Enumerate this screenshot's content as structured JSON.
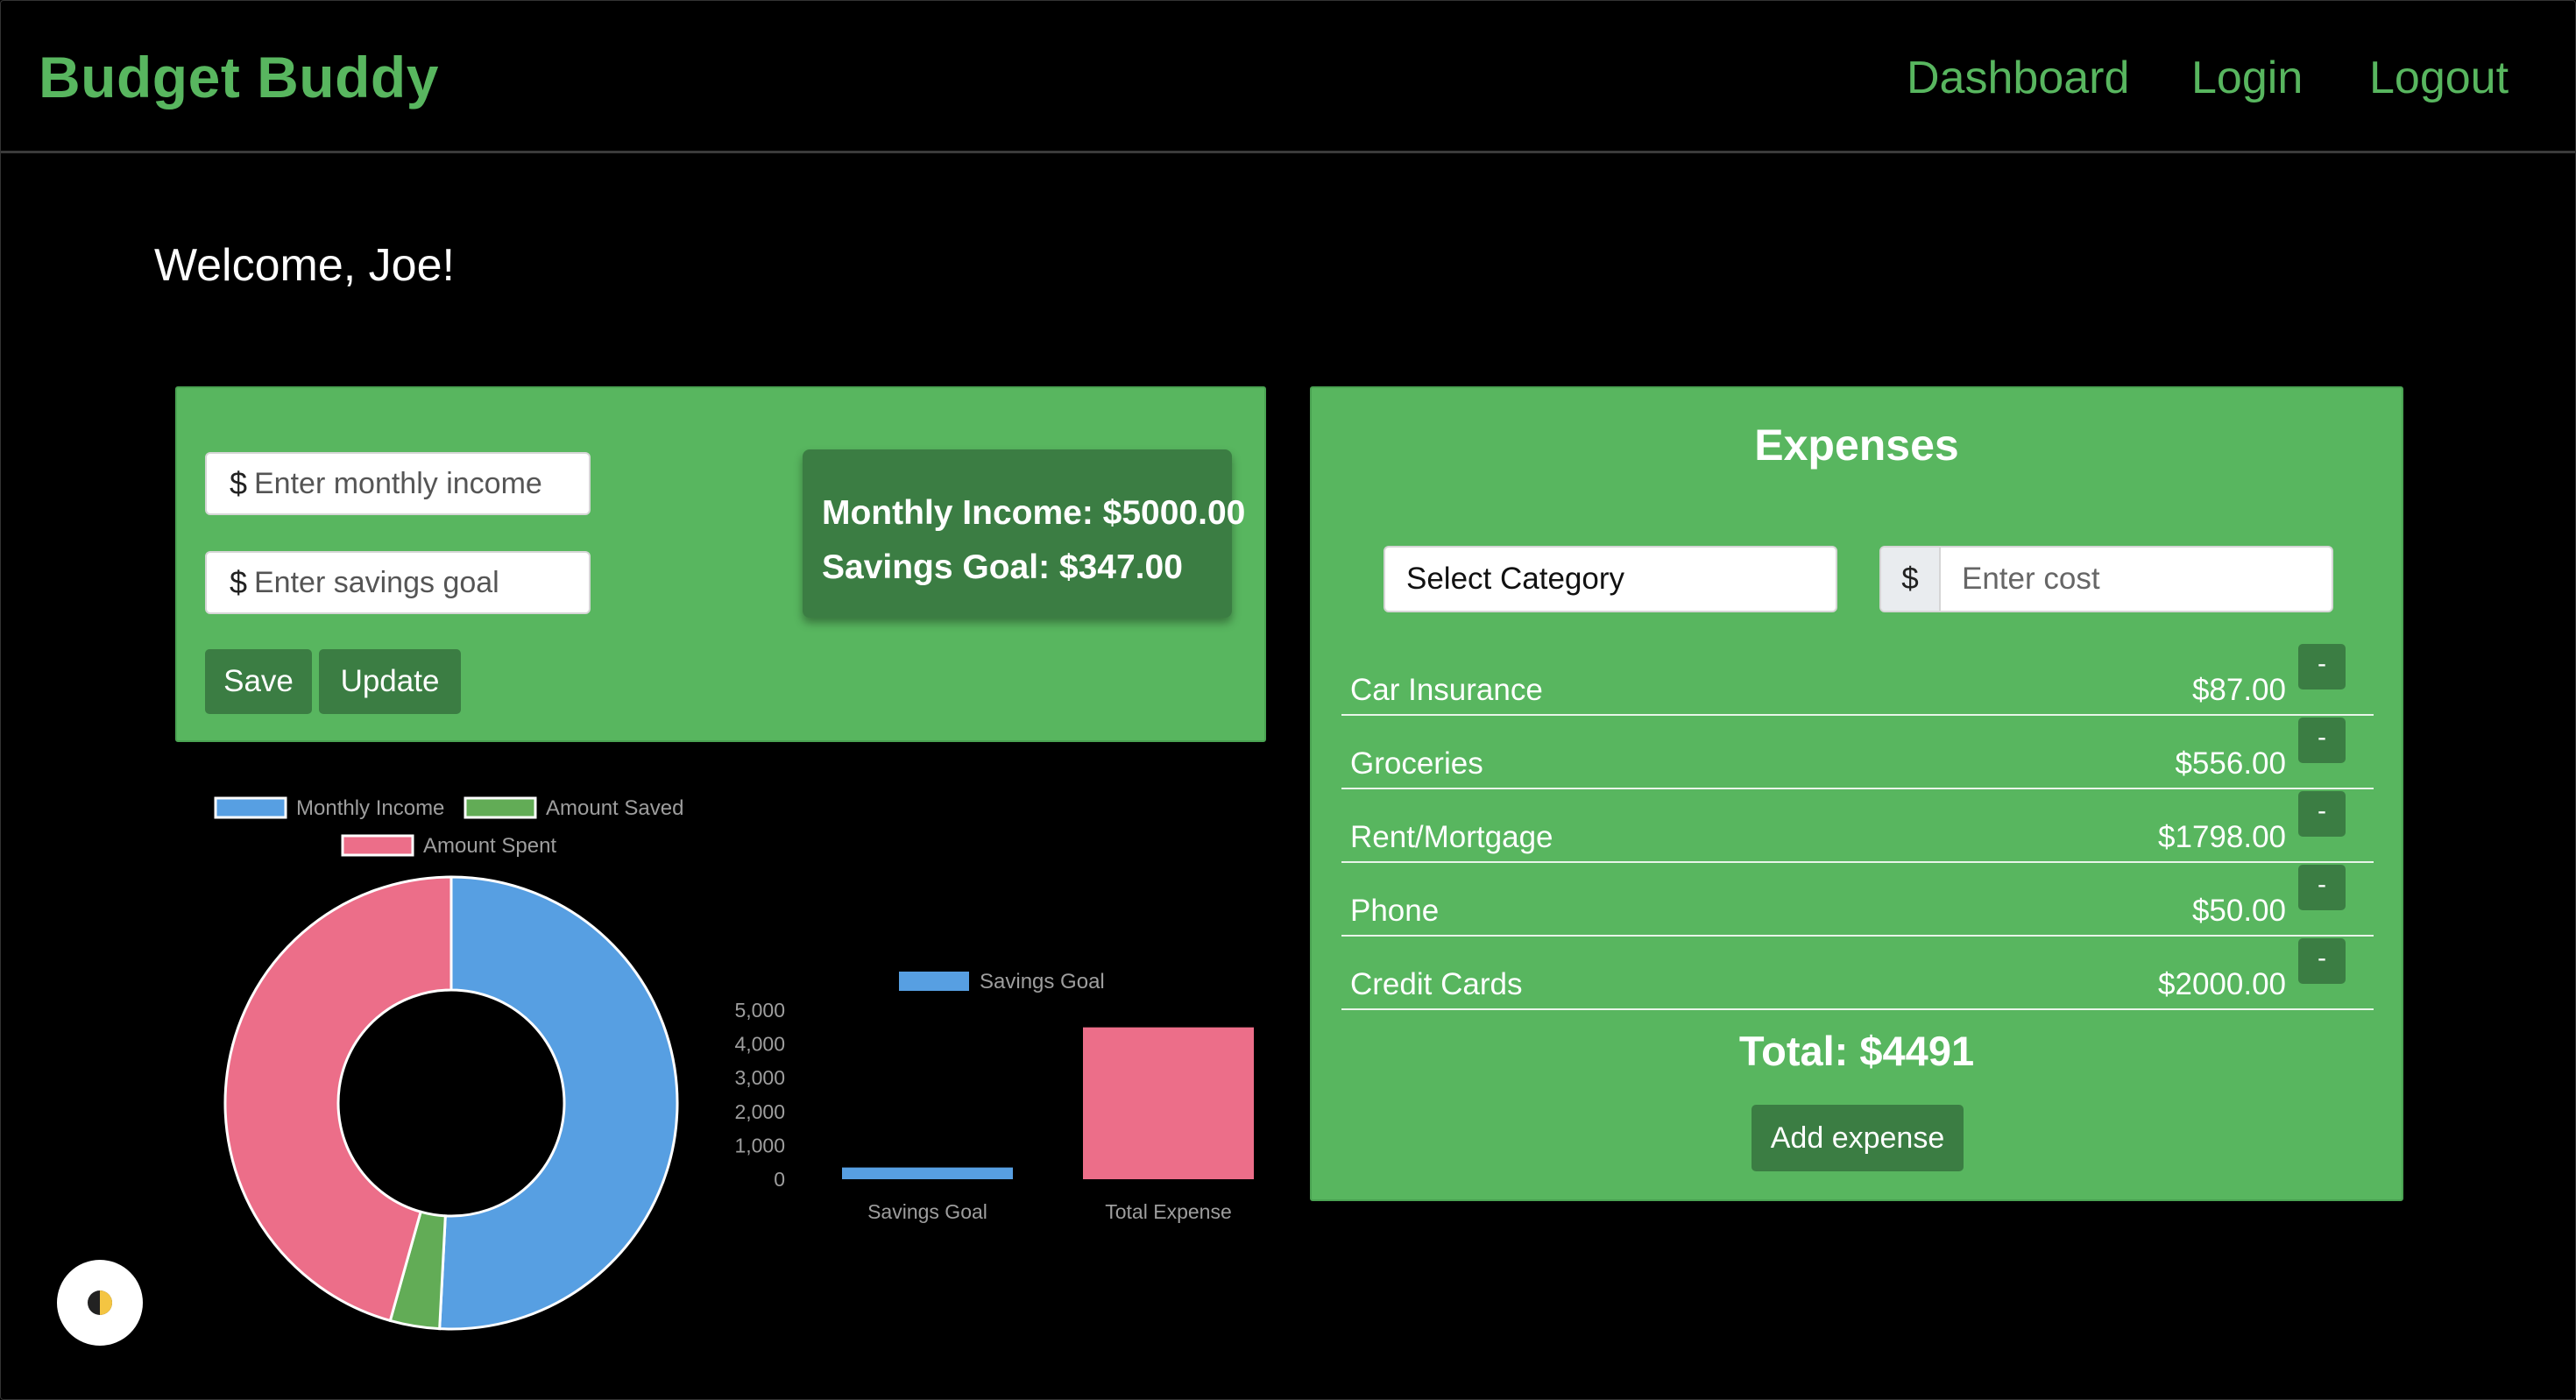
{
  "navbar": {
    "brand": "Budget Buddy",
    "links": [
      "Dashboard",
      "Login",
      "Logout"
    ]
  },
  "welcome": "Welcome, Joe!",
  "income_form": {
    "currency_symbol": "$",
    "income_placeholder": "Enter monthly income",
    "savings_placeholder": "Enter savings goal",
    "save_label": "Save",
    "update_label": "Update"
  },
  "summary": {
    "monthly_income": "Monthly Income: $5000.00",
    "savings_goal": "Savings Goal: $347.00"
  },
  "expenses": {
    "title": "Expenses",
    "category_placeholder": "Select Category",
    "currency_symbol": "$",
    "cost_placeholder": "Enter cost",
    "items": [
      {
        "name": "Car Insurance",
        "amount": "$87.00",
        "remove_label": "-"
      },
      {
        "name": "Groceries",
        "amount": "$556.00",
        "remove_label": "-"
      },
      {
        "name": "Rent/Mortgage",
        "amount": "$1798.00",
        "remove_label": "-"
      },
      {
        "name": "Phone",
        "amount": "$50.00",
        "remove_label": "-"
      },
      {
        "name": "Credit Cards",
        "amount": "$2000.00",
        "remove_label": "-"
      }
    ],
    "total": "Total: $4491",
    "add_label": "Add expense"
  },
  "theme_toggle_icon": "half-moon-icon",
  "colors": {
    "background": "#000000",
    "brand_green": "#58b65f",
    "card_green": "#58b65f",
    "button_green": "#3b7d43",
    "chart_blue": "#579fe2",
    "chart_green": "#62ac56",
    "chart_pink": "#ec6e89"
  },
  "chart_data": [
    {
      "type": "pie",
      "variant": "doughnut",
      "legend_position": "top",
      "labels": [
        "Monthly Income",
        "Amount Saved",
        "Amount Spent"
      ],
      "values": [
        5000,
        347,
        4491
      ],
      "colors": [
        "#579fe2",
        "#62ac56",
        "#ec6e89"
      ]
    },
    {
      "type": "bar",
      "legend_position": "top",
      "categories": [
        "Savings Goal",
        "Total Expense"
      ],
      "series": [
        {
          "name": "Savings Goal",
          "values": [
            347,
            4491
          ]
        }
      ],
      "colors": [
        "#579fe2",
        "#ec6e89"
      ],
      "ylim": [
        0,
        5000
      ],
      "yticks": [
        "0",
        "1,000",
        "2,000",
        "3,000",
        "4,000",
        "5,000"
      ]
    }
  ]
}
